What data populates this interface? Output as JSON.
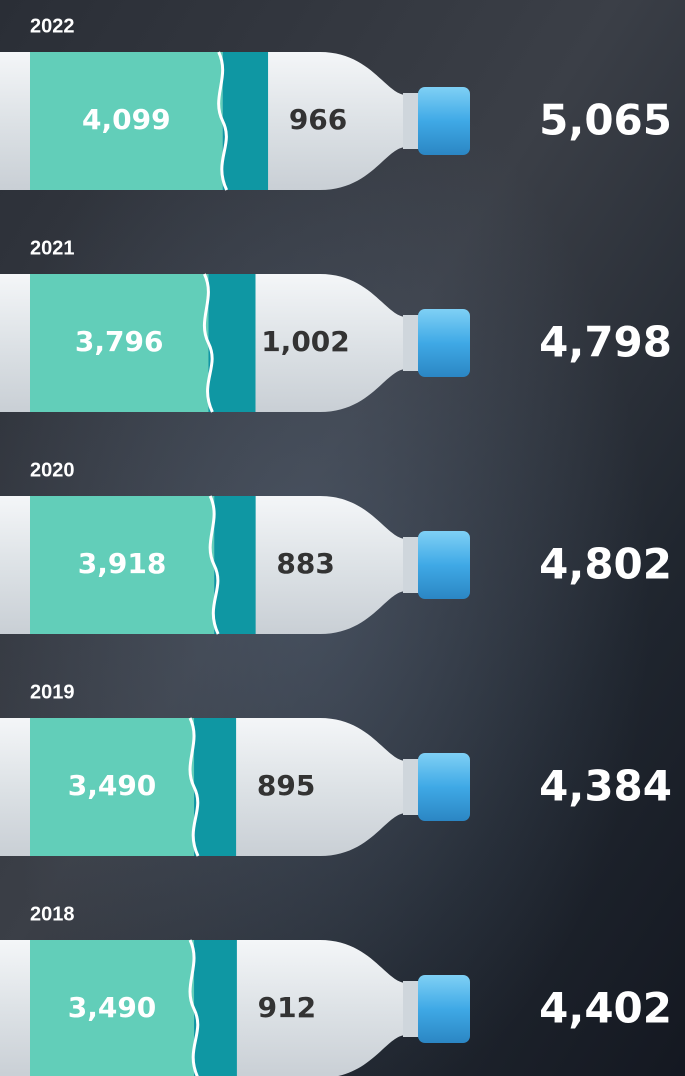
{
  "chart_data": {
    "type": "bar",
    "orientation": "horizontal",
    "stacked": true,
    "categories": [
      "2022",
      "2021",
      "2020",
      "2019",
      "2018"
    ],
    "series": [
      {
        "color": "#62ceb9",
        "values": [
          4099,
          3796,
          3918,
          3490,
          3490
        ],
        "value_labels": [
          "4,099",
          "3,796",
          "3,918",
          "3,490",
          "3,490"
        ]
      },
      {
        "color": "#0f97a3",
        "values": [
          966,
          1002,
          883,
          895,
          912
        ],
        "value_labels": [
          "966",
          "1,002",
          "883",
          "895",
          "912"
        ]
      }
    ],
    "totals": [
      5065,
      4798,
      4802,
      4384,
      4402
    ],
    "total_labels": [
      "5,065",
      "4,798",
      "4,802",
      "4,384",
      "4,402"
    ]
  }
}
